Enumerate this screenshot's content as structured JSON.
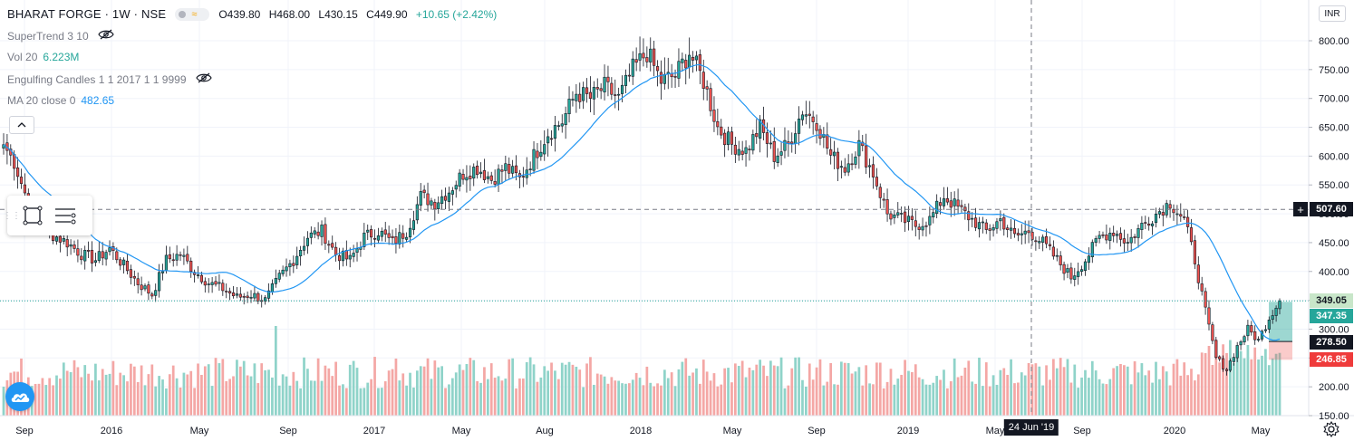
{
  "header": {
    "symbol": "BHARAT FORGE · 1W · NSE",
    "open": "O439.80",
    "high": "H468.00",
    "low": "L430.15",
    "close": "C449.90",
    "change": "+10.65 (+2.42%)"
  },
  "indicators": {
    "supertrend": "SuperTrend 3 10",
    "vol_label": "Vol 20",
    "vol_value": "6.223M",
    "engulfing": "Engulfing Candles 1 1 2017 1 1 9999",
    "ma_label": "MA 20 close 0",
    "ma_value": "482.65"
  },
  "currency": "INR",
  "colors": {
    "up": "#26a69a",
    "down": "#ef5350",
    "vol_up": "#8fd3c9",
    "vol_down": "#f4a7a5",
    "ma": "#2196f3",
    "crosshair": "#787b86"
  },
  "icons": [
    "eye-off-icon",
    "chevron-up-icon",
    "rectangle-tool-icon",
    "layers-tool-icon",
    "tradingview-logo-icon",
    "gear-icon",
    "plus-icon"
  ],
  "price_tags": {
    "crosshair": "507.60",
    "last": "349.05",
    "position_high": "347.35",
    "position_entry": "278.50",
    "position_stop": "246.85"
  },
  "crosshair_date": "24 Jun '19",
  "chart_data": {
    "type": "candlestick",
    "y_ticks": [
      "800.00",
      "750.00",
      "700.00",
      "650.00",
      "600.00",
      "550.00",
      "500.00",
      "450.00",
      "400.00",
      "350.00",
      "300.00",
      "250.00",
      "200.00",
      "150.00"
    ],
    "x_ticks": [
      "Sep",
      "2016",
      "May",
      "Sep",
      "2017",
      "May",
      "Aug",
      "2018",
      "May",
      "Sep",
      "2019",
      "May",
      "Sep",
      "2020",
      "May"
    ],
    "ylim": [
      150,
      810
    ],
    "ma_period": 20,
    "ma_last": 482.65,
    "crosshair_price": 507.6,
    "last_price": 349.05,
    "anchors": [
      [
        0,
        620
      ],
      [
        3,
        590
      ],
      [
        8,
        500
      ],
      [
        12,
        470
      ],
      [
        18,
        450
      ],
      [
        22,
        430
      ],
      [
        26,
        420
      ],
      [
        30,
        440
      ],
      [
        34,
        410
      ],
      [
        38,
        380
      ],
      [
        42,
        360
      ],
      [
        46,
        420
      ],
      [
        50,
        430
      ],
      [
        54,
        400
      ],
      [
        58,
        380
      ],
      [
        62,
        370
      ],
      [
        66,
        355
      ],
      [
        70,
        360
      ],
      [
        74,
        350
      ],
      [
        78,
        390
      ],
      [
        82,
        420
      ],
      [
        86,
        460
      ],
      [
        90,
        470
      ],
      [
        94,
        430
      ],
      [
        98,
        420
      ],
      [
        102,
        460
      ],
      [
        106,
        470
      ],
      [
        110,
        450
      ],
      [
        114,
        470
      ],
      [
        118,
        530
      ],
      [
        122,
        520
      ],
      [
        126,
        540
      ],
      [
        130,
        570
      ],
      [
        134,
        580
      ],
      [
        138,
        560
      ],
      [
        142,
        580
      ],
      [
        146,
        560
      ],
      [
        150,
        600
      ],
      [
        154,
        640
      ],
      [
        158,
        660
      ],
      [
        162,
        710
      ],
      [
        166,
        700
      ],
      [
        170,
        720
      ],
      [
        174,
        700
      ],
      [
        178,
        750
      ],
      [
        182,
        780
      ],
      [
        186,
        730
      ],
      [
        190,
        740
      ],
      [
        194,
        780
      ],
      [
        198,
        730
      ],
      [
        202,
        650
      ],
      [
        206,
        620
      ],
      [
        210,
        610
      ],
      [
        214,
        650
      ],
      [
        218,
        600
      ],
      [
        222,
        620
      ],
      [
        226,
        680
      ],
      [
        230,
        660
      ],
      [
        234,
        600
      ],
      [
        238,
        580
      ],
      [
        242,
        620
      ],
      [
        246,
        570
      ],
      [
        250,
        500
      ],
      [
        254,
        490
      ],
      [
        258,
        480
      ],
      [
        262,
        490
      ],
      [
        266,
        530
      ],
      [
        270,
        510
      ],
      [
        274,
        490
      ],
      [
        278,
        470
      ],
      [
        282,
        490
      ],
      [
        286,
        460
      ],
      [
        290,
        470
      ],
      [
        294,
        450
      ],
      [
        298,
        420
      ],
      [
        302,
        390
      ],
      [
        306,
        420
      ],
      [
        310,
        460
      ],
      [
        314,
        470
      ],
      [
        318,
        450
      ],
      [
        322,
        480
      ],
      [
        326,
        500
      ],
      [
        330,
        520
      ],
      [
        334,
        490
      ],
      [
        337,
        420
      ],
      [
        340,
        330
      ],
      [
        343,
        250
      ],
      [
        346,
        230
      ],
      [
        349,
        270
      ],
      [
        352,
        300
      ],
      [
        355,
        280
      ],
      [
        358,
        320
      ],
      [
        361,
        349.05
      ]
    ],
    "volume_spikes": [
      [
        18,
        155
      ],
      [
        77,
        210
      ],
      [
        111,
        170
      ],
      [
        162,
        160
      ],
      [
        248,
        165
      ],
      [
        342,
        145
      ]
    ]
  }
}
